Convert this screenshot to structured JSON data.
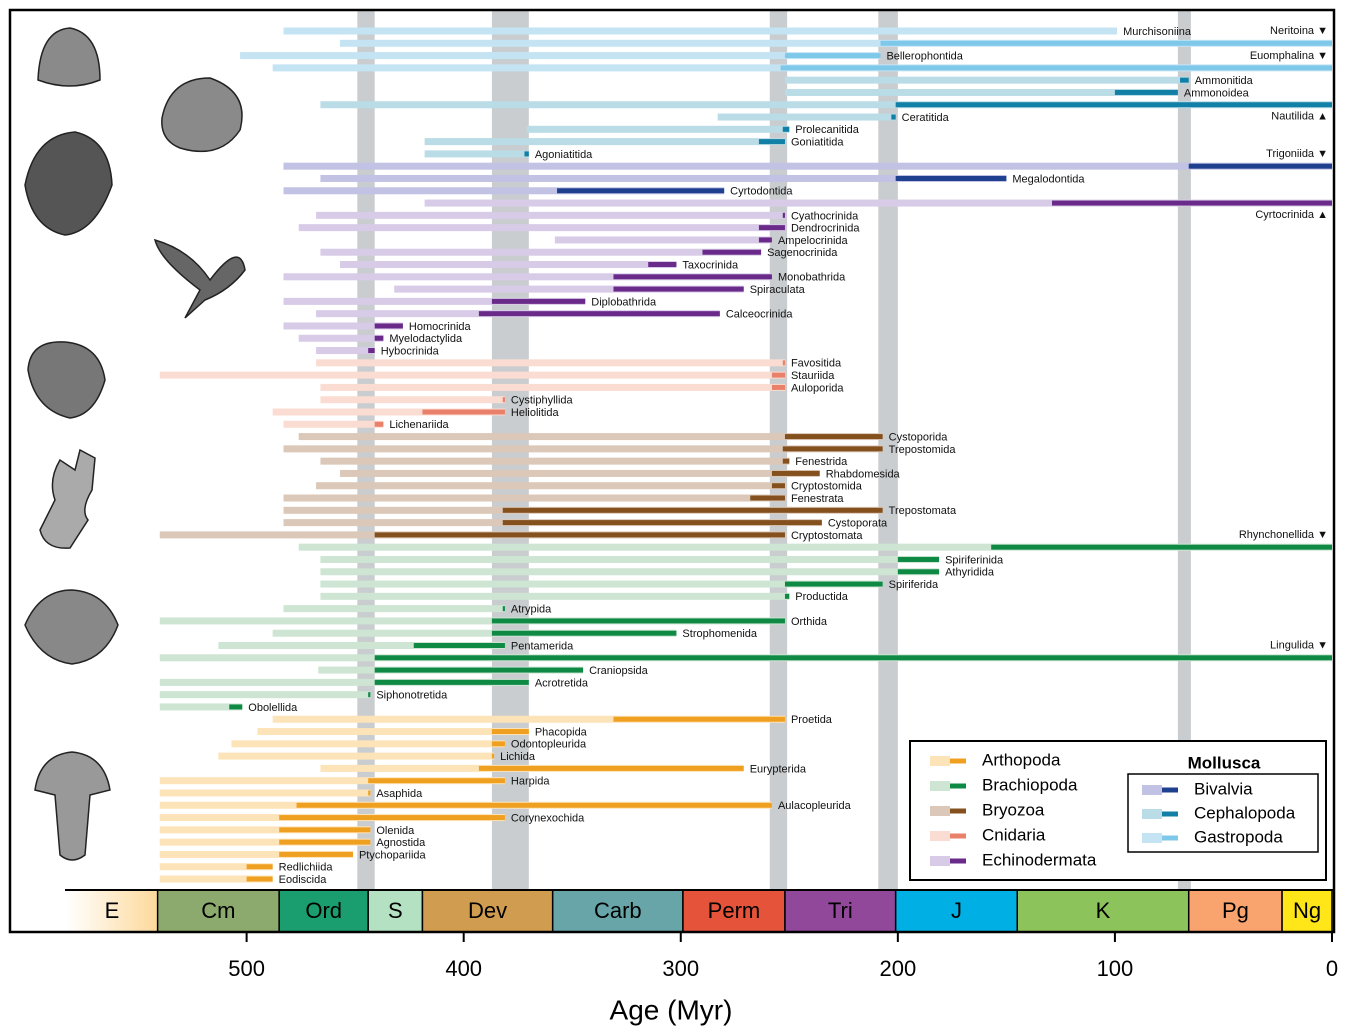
{
  "chart_data": {
    "type": "range",
    "xlabel": "Age (Myr)",
    "xlim": [
      609,
      0
    ],
    "xticks": [
      500,
      400,
      300,
      200,
      100,
      0
    ],
    "extinctions": [
      [
        449,
        441
      ],
      [
        387,
        370
      ],
      [
        259,
        251
      ],
      [
        209,
        200
      ],
      [
        71,
        65
      ]
    ],
    "periods": [
      {
        "name": "E",
        "start": 583,
        "end": 541,
        "color": "#fdd99b"
      },
      {
        "name": "Cm",
        "start": 541,
        "end": 485,
        "color": "#8caa6e"
      },
      {
        "name": "Ord",
        "start": 485,
        "end": 444,
        "color": "#1a9d6f"
      },
      {
        "name": "S",
        "start": 444,
        "end": 419,
        "color": "#b3e1c2"
      },
      {
        "name": "Dev",
        "start": 419,
        "end": 359,
        "color": "#cf9c50"
      },
      {
        "name": "Carb",
        "start": 359,
        "end": 299,
        "color": "#67a5a8"
      },
      {
        "name": "Perm",
        "start": 299,
        "end": 252,
        "color": "#e5533a"
      },
      {
        "name": "Tri",
        "start": 252,
        "end": 201,
        "color": "#92489a"
      },
      {
        "name": "J",
        "start": 201,
        "end": 145,
        "color": "#00b0e4"
      },
      {
        "name": "K",
        "start": 145,
        "end": 66,
        "color": "#8cc35a"
      },
      {
        "name": "Pg",
        "start": 66,
        "end": 23,
        "color": "#f9a46f"
      },
      {
        "name": "Ng",
        "start": 23,
        "end": 0,
        "color": "#ffe619"
      }
    ],
    "legend_box_title": "Mollusca",
    "groups": [
      {
        "name": "Gastropoda",
        "mollusk": true,
        "light": "#c4e4f4",
        "dark": "#7ec8ea",
        "taxa": [
          {
            "name": "Murchisoniina",
            "range": [
              483,
              99
            ],
            "core": null
          },
          {
            "name": "Neritoina ▼",
            "range": [
              457,
              0
            ],
            "core": [
              208,
              0
            ]
          },
          {
            "name": "Bellerophontida",
            "range": [
              503,
              208
            ],
            "core": [
              252,
              208
            ]
          },
          {
            "name": "Euomphalina ▼",
            "range": [
              488,
              0
            ],
            "core": [
              254,
              0
            ]
          }
        ]
      },
      {
        "name": "Cephalopoda",
        "mollusk": true,
        "light": "#b9dce6",
        "dark": "#117fa6",
        "taxa": [
          {
            "name": "Ammonitida",
            "range": [
              252,
              66
            ],
            "core": [
              70,
              66
            ]
          },
          {
            "name": "Ammonoidea",
            "range": [
              252,
              71
            ],
            "core": [
              100,
              71
            ]
          },
          {
            "name": "Nautilida ▲",
            "range": [
              466,
              0
            ],
            "core": [
              201,
              0
            ]
          },
          {
            "name": "Ceratitida",
            "range": [
              283,
              201
            ],
            "core": [
              203,
              201
            ]
          },
          {
            "name": "Prolecanitida",
            "range": [
              371,
              250
            ],
            "core": [
              253,
              250
            ]
          },
          {
            "name": "Goniatitida",
            "range": [
              418,
              252
            ],
            "core": [
              264,
              252
            ]
          },
          {
            "name": "Agoniatitida",
            "range": [
              418,
              370
            ],
            "core": [
              372,
              370
            ]
          }
        ]
      },
      {
        "name": "Bivalvia",
        "mollusk": true,
        "light": "#c2c2e4",
        "dark": "#1f3f8f",
        "taxa": [
          {
            "name": "Trigoniida ▼",
            "range": [
              483,
              0
            ],
            "core": [
              66,
              0
            ]
          },
          {
            "name": "Megalodontida",
            "range": [
              466,
              150
            ],
            "core": [
              201,
              150
            ]
          },
          {
            "name": "Cyrtodontida",
            "range": [
              483,
              280
            ],
            "core": [
              357,
              280
            ]
          }
        ]
      },
      {
        "name": "Echinodermata",
        "mollusk": false,
        "light": "#d8cbe8",
        "dark": "#6a2a8a",
        "taxa": [
          {
            "name": "Cyrtocrinida ▲",
            "range": [
              418,
              0
            ],
            "core": [
              129,
              0
            ]
          },
          {
            "name": "Cyathocrinida",
            "range": [
              468,
              252
            ],
            "core": [
              253,
              252
            ]
          },
          {
            "name": "Dendrocrinida",
            "range": [
              476,
              252
            ],
            "core": [
              264,
              252
            ]
          },
          {
            "name": "Ampelocrinida",
            "range": [
              358,
              258
            ],
            "core": [
              264,
              258
            ]
          },
          {
            "name": "Sagenocrinida",
            "range": [
              466,
              263
            ],
            "core": [
              290,
              263
            ]
          },
          {
            "name": "Taxocrinida",
            "range": [
              457,
              302
            ],
            "core": [
              315,
              302
            ]
          },
          {
            "name": "Monobathrida",
            "range": [
              483,
              258
            ],
            "core": [
              331,
              258
            ]
          },
          {
            "name": "Spiraculata",
            "range": [
              432,
              271
            ],
            "core": [
              331,
              271
            ]
          },
          {
            "name": "Diplobathrida",
            "range": [
              483,
              344
            ],
            "core": [
              387,
              344
            ]
          },
          {
            "name": "Calceocrinida",
            "range": [
              468,
              282
            ],
            "core": [
              393,
              282
            ]
          },
          {
            "name": "Homocrinida",
            "range": [
              483,
              428
            ],
            "core": [
              441,
              428
            ]
          },
          {
            "name": "Myelodactylida",
            "range": [
              476,
              437
            ],
            "core": [
              441,
              437
            ]
          },
          {
            "name": "Hybocrinida",
            "range": [
              468,
              441
            ],
            "core": [
              444,
              441
            ]
          }
        ]
      },
      {
        "name": "Cnidaria",
        "mollusk": false,
        "light": "#fbdcd2",
        "dark": "#e8806a",
        "taxa": [
          {
            "name": "Favositida",
            "range": [
              468,
              252
            ],
            "core": [
              253,
              252
            ]
          },
          {
            "name": "Stauriida",
            "range": [
              540,
              252
            ],
            "core": [
              258,
              252
            ]
          },
          {
            "name": "Auloporida",
            "range": [
              466,
              252
            ],
            "core": [
              258,
              252
            ]
          },
          {
            "name": "Cystiphyllida",
            "range": [
              466,
              381
            ],
            "core": [
              382,
              381
            ]
          },
          {
            "name": "Heliolitida",
            "range": [
              488,
              381
            ],
            "core": [
              419,
              381
            ]
          },
          {
            "name": "Lichenariida",
            "range": [
              483,
              437
            ],
            "core": [
              441,
              437
            ]
          }
        ]
      },
      {
        "name": "Bryozoa",
        "mollusk": false,
        "light": "#dcc8b8",
        "dark": "#83501e",
        "taxa": [
          {
            "name": "Cystoporida",
            "range": [
              476,
              207
            ],
            "core": [
              252,
              207
            ]
          },
          {
            "name": "Trepostomida",
            "range": [
              483,
              207
            ],
            "core": [
              253,
              207
            ]
          },
          {
            "name": "Fenestrida",
            "range": [
              466,
              250
            ],
            "core": [
              253,
              250
            ]
          },
          {
            "name": "Rhabdomesida",
            "range": [
              457,
              236
            ],
            "core": [
              258,
              236
            ]
          },
          {
            "name": "Cryptostomida",
            "range": [
              468,
              252
            ],
            "core": [
              258,
              252
            ]
          },
          {
            "name": "Fenestrata",
            "range": [
              483,
              252
            ],
            "core": [
              268,
              252
            ]
          },
          {
            "name": "Trepostomata",
            "range": [
              483,
              207
            ],
            "core": [
              382,
              207
            ]
          },
          {
            "name": "Cystoporata",
            "range": [
              483,
              235
            ],
            "core": [
              382,
              235
            ]
          },
          {
            "name": "Cryptostomata",
            "range": [
              540,
              252
            ],
            "core": [
              441,
              252
            ]
          }
        ]
      },
      {
        "name": "Brachiopoda",
        "mollusk": false,
        "light": "#cde5d2",
        "dark": "#0f8a45",
        "taxa": [
          {
            "name": "Rhynchonellida ▼",
            "range": [
              476,
              0
            ],
            "core": [
              157,
              0
            ]
          },
          {
            "name": "Spiriferinida",
            "range": [
              466,
              181
            ],
            "core": [
              200,
              181
            ]
          },
          {
            "name": "Athyridida",
            "range": [
              466,
              181
            ],
            "core": [
              200,
              181
            ]
          },
          {
            "name": "Spiriferida",
            "range": [
              466,
              207
            ],
            "core": [
              252,
              207
            ]
          },
          {
            "name": "Productida",
            "range": [
              466,
              250
            ],
            "core": [
              252,
              250
            ]
          },
          {
            "name": "Atrypida",
            "range": [
              483,
              381
            ],
            "core": [
              382,
              381
            ]
          },
          {
            "name": "Orthida",
            "range": [
              540,
              252
            ],
            "core": [
              387,
              252
            ]
          },
          {
            "name": "Strophomenida",
            "range": [
              488,
              302
            ],
            "core": [
              387,
              302
            ]
          },
          {
            "name": "Pentamerida",
            "range": [
              513,
              381
            ],
            "core": [
              423,
              381
            ]
          },
          {
            "name": "Lingulida ▼",
            "range": [
              540,
              0
            ],
            "core": [
              441,
              0
            ]
          },
          {
            "name": "Craniopsida",
            "range": [
              467,
              345
            ],
            "core": [
              441,
              345
            ]
          },
          {
            "name": "Acrotretida",
            "range": [
              540,
              370
            ],
            "core": [
              441,
              370
            ]
          },
          {
            "name": "Siphonotretida",
            "range": [
              540,
              443
            ],
            "core": [
              444,
              443
            ]
          },
          {
            "name": "Obolellida",
            "range": [
              540,
              502
            ],
            "core": [
              508,
              502
            ]
          }
        ]
      },
      {
        "name": "Arthopoda",
        "mollusk": false,
        "light": "#fde3b8",
        "dark": "#f0a020",
        "taxa": [
          {
            "name": "Proetida",
            "range": [
              488,
              252
            ],
            "core": [
              331,
              252
            ]
          },
          {
            "name": "Phacopida",
            "range": [
              495,
              370
            ],
            "core": [
              387,
              370
            ]
          },
          {
            "name": "Odontopleurida",
            "range": [
              507,
              381
            ],
            "core": [
              387,
              381
            ]
          },
          {
            "name": "Lichida",
            "range": [
              513,
              386
            ],
            "core": [
              387,
              386
            ]
          },
          {
            "name": "Eurypterida",
            "range": [
              466,
              271
            ],
            "core": [
              393,
              271
            ]
          },
          {
            "name": "Harpida",
            "range": [
              540,
              381
            ],
            "core": [
              444,
              381
            ]
          },
          {
            "name": "Asaphida",
            "range": [
              540,
              443
            ],
            "core": [
              444,
              443
            ]
          },
          {
            "name": "Aulacopleurida",
            "range": [
              540,
              258
            ],
            "core": [
              477,
              258
            ]
          },
          {
            "name": "Corynexochida",
            "range": [
              540,
              381
            ],
            "core": [
              485,
              381
            ]
          },
          {
            "name": "Olenida",
            "range": [
              540,
              443
            ],
            "core": [
              485,
              443
            ]
          },
          {
            "name": "Agnostida",
            "range": [
              540,
              443
            ],
            "core": [
              485,
              443
            ]
          },
          {
            "name": "Ptychopariida",
            "range": [
              540,
              451
            ],
            "core": [
              485,
              451
            ]
          },
          {
            "name": "Redlichiida",
            "range": [
              540,
              488
            ],
            "core": [
              500,
              488
            ]
          },
          {
            "name": "Eodiscida",
            "range": [
              540,
              488
            ],
            "core": [
              500,
              488
            ]
          }
        ]
      }
    ]
  }
}
